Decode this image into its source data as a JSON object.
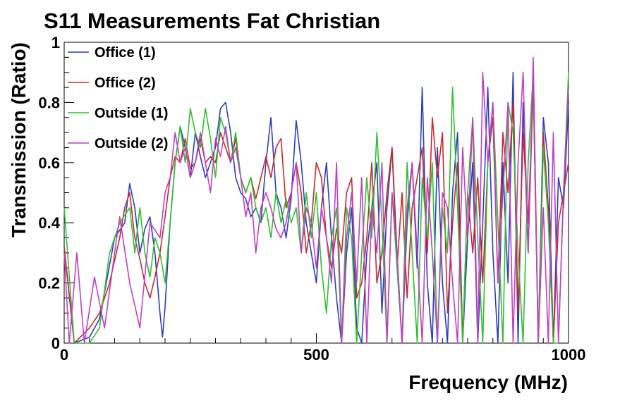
{
  "chart_data": {
    "type": "line",
    "title": "S11 Measurements Fat Christian",
    "xlabel": "Frequency (MHz)",
    "ylabel": "Transmission (Ratio)",
    "xlim": [
      0,
      1000
    ],
    "ylim": [
      0,
      1
    ],
    "x_ticks": [
      0,
      500,
      1000
    ],
    "y_ticks": [
      0,
      0.2,
      0.4,
      0.6,
      0.8,
      1
    ],
    "grid": false,
    "legend_position": "top-left",
    "series": [
      {
        "name": "Office (1)",
        "color": "#2b3fb8",
        "x": [
          0,
          20,
          50,
          70,
          100,
          120,
          130,
          140,
          150,
          160,
          170,
          180,
          190,
          195,
          200,
          210,
          220,
          230,
          240,
          250,
          260,
          270,
          280,
          290,
          300,
          310,
          320,
          330,
          340,
          350,
          360,
          370,
          380,
          390,
          400,
          410,
          420,
          430,
          440,
          450,
          460,
          470,
          480,
          490,
          500,
          510,
          520,
          530,
          540,
          550,
          560,
          570,
          580,
          590,
          600,
          610,
          620,
          630,
          640,
          650,
          660,
          670,
          680,
          690,
          700,
          710,
          720,
          730,
          740,
          750,
          760,
          770,
          780,
          790,
          800,
          810,
          820,
          830,
          840,
          850,
          860,
          870,
          880,
          890,
          900,
          910,
          920,
          930,
          940,
          950,
          960,
          970,
          980,
          990,
          1000
        ],
        "values": [
          0.32,
          0.0,
          0.02,
          0.08,
          0.35,
          0.4,
          0.53,
          0.45,
          0.3,
          0.38,
          0.42,
          0.3,
          0.1,
          0.02,
          0.12,
          0.4,
          0.6,
          0.72,
          0.65,
          0.55,
          0.7,
          0.62,
          0.55,
          0.6,
          0.65,
          0.78,
          0.8,
          0.7,
          0.55,
          0.5,
          0.48,
          0.42,
          0.45,
          0.4,
          0.6,
          0.75,
          0.5,
          0.45,
          0.35,
          0.48,
          0.74,
          0.6,
          0.4,
          0.3,
          0.2,
          0.45,
          0.6,
          0.35,
          0.15,
          0.0,
          0.3,
          0.45,
          0.05,
          0.0,
          0.3,
          0.45,
          0.6,
          0.1,
          0.45,
          0.65,
          0.3,
          0.0,
          0.4,
          0.6,
          0.25,
          0.85,
          0.2,
          0.0,
          0.65,
          0.2,
          0.0,
          0.5,
          0.7,
          0.0,
          0.35,
          0.6,
          0.0,
          0.4,
          0.85,
          0.3,
          0.0,
          0.6,
          0.2,
          0.9,
          0.0,
          0.8,
          0.3,
          0.88,
          0.0,
          0.75,
          0.6,
          0.0,
          0.55,
          0.45,
          0.8
        ]
      },
      {
        "name": "Office (2)",
        "color": "#c42b2b",
        "x": [
          0,
          20,
          50,
          70,
          90,
          110,
          120,
          130,
          140,
          150,
          160,
          170,
          180,
          190,
          200,
          210,
          220,
          230,
          240,
          250,
          260,
          270,
          280,
          290,
          300,
          310,
          320,
          330,
          340,
          350,
          360,
          370,
          380,
          390,
          400,
          410,
          420,
          430,
          440,
          450,
          460,
          470,
          480,
          490,
          500,
          510,
          520,
          530,
          540,
          550,
          560,
          570,
          580,
          590,
          600,
          610,
          620,
          630,
          640,
          650,
          660,
          670,
          680,
          690,
          700,
          710,
          720,
          730,
          740,
          750,
          760,
          770,
          780,
          790,
          800,
          810,
          820,
          830,
          840,
          850,
          860,
          870,
          880,
          890,
          900,
          910,
          920,
          930,
          940,
          950,
          960,
          970,
          980,
          990,
          1000
        ],
        "values": [
          0.32,
          0.0,
          0.05,
          0.1,
          0.2,
          0.35,
          0.45,
          0.5,
          0.35,
          0.28,
          0.2,
          0.15,
          0.22,
          0.3,
          0.42,
          0.55,
          0.62,
          0.6,
          0.68,
          0.58,
          0.6,
          0.68,
          0.6,
          0.62,
          0.6,
          0.7,
          0.65,
          0.6,
          0.68,
          0.55,
          0.5,
          0.55,
          0.48,
          0.55,
          0.62,
          0.55,
          0.65,
          0.68,
          0.45,
          0.5,
          0.6,
          0.5,
          0.3,
          0.4,
          0.6,
          0.55,
          0.35,
          0.25,
          0.38,
          0.3,
          0.5,
          0.55,
          0.15,
          0.2,
          0.35,
          0.6,
          0.2,
          0.3,
          0.5,
          0.65,
          0.25,
          0.5,
          0.15,
          0.45,
          0.55,
          0.65,
          0.3,
          0.75,
          0.55,
          0.7,
          0.1,
          0.4,
          0.6,
          0.0,
          0.5,
          0.3,
          0.55,
          0.2,
          0.6,
          0.75,
          0.2,
          0.7,
          0.5,
          0.8,
          0.1,
          0.7,
          0.4,
          0.85,
          0.0,
          0.7,
          0.45,
          0.0,
          0.4,
          0.5,
          0.6
        ]
      },
      {
        "name": "Outside (1)",
        "color": "#2fbf2f",
        "x": [
          0,
          20,
          50,
          70,
          90,
          110,
          130,
          140,
          150,
          160,
          170,
          180,
          190,
          200,
          210,
          220,
          230,
          240,
          250,
          260,
          270,
          280,
          290,
          300,
          310,
          320,
          330,
          340,
          350,
          360,
          370,
          380,
          390,
          400,
          410,
          420,
          430,
          440,
          450,
          460,
          470,
          480,
          490,
          500,
          510,
          520,
          530,
          540,
          550,
          560,
          570,
          580,
          590,
          600,
          610,
          620,
          630,
          640,
          650,
          660,
          670,
          680,
          690,
          700,
          710,
          720,
          730,
          740,
          750,
          760,
          770,
          780,
          790,
          800,
          810,
          820,
          830,
          840,
          850,
          860,
          870,
          880,
          890,
          900,
          910,
          920,
          930,
          940,
          950,
          960,
          970,
          980,
          990,
          1000
        ],
        "values": [
          0.45,
          0.0,
          0.0,
          0.05,
          0.3,
          0.4,
          0.45,
          0.3,
          0.45,
          0.3,
          0.22,
          0.35,
          0.3,
          0.2,
          0.4,
          0.6,
          0.72,
          0.6,
          0.78,
          0.7,
          0.65,
          0.78,
          0.68,
          0.55,
          0.75,
          0.7,
          0.6,
          0.7,
          0.55,
          0.5,
          0.55,
          0.45,
          0.4,
          0.45,
          0.35,
          0.5,
          0.4,
          0.48,
          0.4,
          0.45,
          0.3,
          0.5,
          0.35,
          0.5,
          0.25,
          0.1,
          0.35,
          0.45,
          0.0,
          0.45,
          0.35,
          0.0,
          0.3,
          0.55,
          0.35,
          0.7,
          0.4,
          0.0,
          0.5,
          0.25,
          0.0,
          0.6,
          0.3,
          0.0,
          0.55,
          0.35,
          0.6,
          0.0,
          0.45,
          0.3,
          0.85,
          0.45,
          0.0,
          0.5,
          0.75,
          0.35,
          0.0,
          0.6,
          0.8,
          0.4,
          0.0,
          0.8,
          0.7,
          0.3,
          0.0,
          0.6,
          0.9,
          0.0,
          0.65,
          0.4,
          0.0,
          0.0,
          0.5,
          0.9
        ]
      },
      {
        "name": "Outside (2)",
        "color": "#c23fc2",
        "x": [
          0,
          10,
          25,
          40,
          60,
          80,
          100,
          110,
          130,
          150,
          170,
          190,
          200,
          210,
          220,
          230,
          240,
          250,
          260,
          270,
          280,
          290,
          300,
          310,
          320,
          330,
          340,
          350,
          360,
          370,
          380,
          390,
          400,
          410,
          420,
          430,
          440,
          450,
          460,
          470,
          480,
          490,
          500,
          510,
          520,
          530,
          540,
          550,
          560,
          570,
          580,
          590,
          600,
          610,
          620,
          630,
          640,
          650,
          660,
          670,
          680,
          690,
          700,
          710,
          720,
          730,
          740,
          750,
          760,
          770,
          780,
          790,
          800,
          810,
          820,
          830,
          840,
          850,
          860,
          870,
          880,
          890,
          900,
          910,
          920,
          930,
          940,
          950,
          960,
          970,
          980,
          990,
          1000
        ],
        "values": [
          0.3,
          0.0,
          0.3,
          0.0,
          0.22,
          0.05,
          0.3,
          0.42,
          0.2,
          0.05,
          0.4,
          0.35,
          0.5,
          0.55,
          0.7,
          0.6,
          0.65,
          0.55,
          0.6,
          0.7,
          0.6,
          0.5,
          0.68,
          0.62,
          0.72,
          0.6,
          0.65,
          0.55,
          0.42,
          0.5,
          0.3,
          0.45,
          0.5,
          0.45,
          0.38,
          0.35,
          0.4,
          0.5,
          0.6,
          0.3,
          0.45,
          0.4,
          0.25,
          0.45,
          0.35,
          0.2,
          0.6,
          0.0,
          0.35,
          0.5,
          0.2,
          0.55,
          0.0,
          0.45,
          0.3,
          0.6,
          0.0,
          0.5,
          0.3,
          0.0,
          0.45,
          0.6,
          0.3,
          0.0,
          0.55,
          0.3,
          0.0,
          0.5,
          0.45,
          0.2,
          0.0,
          0.65,
          0.35,
          0.75,
          0.0,
          0.9,
          0.6,
          0.8,
          0.2,
          0.5,
          0.8,
          0.0,
          0.6,
          0.9,
          0.3,
          0.95,
          0.0,
          0.45,
          0.0,
          0.7,
          0.0,
          0.5,
          0.85
        ]
      }
    ]
  }
}
